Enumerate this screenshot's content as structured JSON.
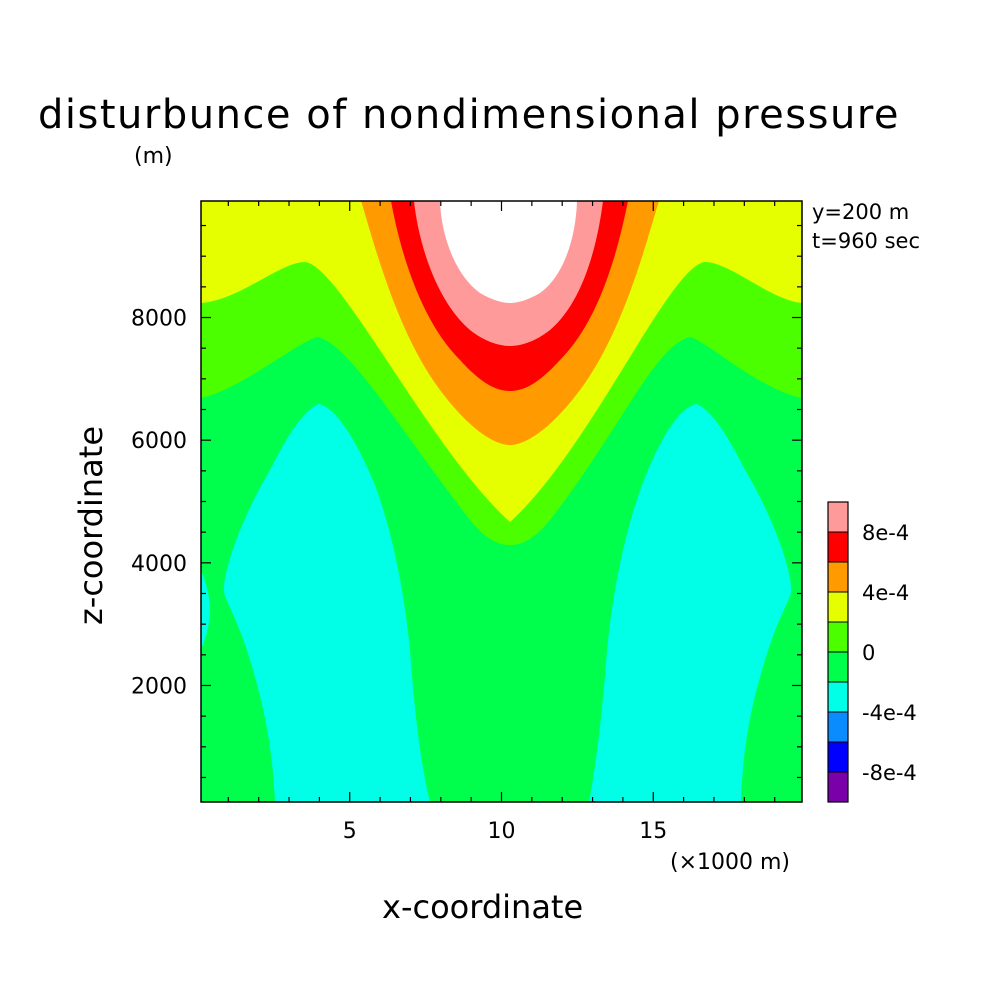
{
  "chart_data": {
    "type": "contour",
    "title": "disturbunce of nondimensional pressure",
    "ylabel_unit": "(m)",
    "xlabel": "x-coordinate",
    "ylabel": "z-coordinate",
    "x_multiplier_label": "(×1000 m)",
    "annotations": [
      "y=200 m",
      "t=960 sec"
    ],
    "xlim": [
      0.1,
      19.9
    ],
    "ylim": [
      100,
      9900
    ],
    "xticks": [
      5,
      10,
      15
    ],
    "xtick_labels": [
      "5",
      "10",
      "15"
    ],
    "yticks": [
      2000,
      4000,
      6000,
      8000
    ],
    "ytick_labels": [
      "2000",
      "4000",
      "6000",
      "8000"
    ],
    "levels_labels": [
      "8e-4",
      "4e-4",
      "0",
      "-4e-4",
      "-8e-4"
    ],
    "colorbar": [
      {
        "range": "> 1e-3",
        "color": "#ffffff"
      },
      {
        "range": "8e-4 – 1e-3",
        "color": "#ff9a9a"
      },
      {
        "range": "6e-4 – 8e-4",
        "color": "#ff0000"
      },
      {
        "range": "4e-4 – 6e-4",
        "color": "#ff9a00"
      },
      {
        "range": "2e-4 – 4e-4",
        "color": "#e6ff00"
      },
      {
        "range": "0 – 2e-4",
        "color": "#4cff00"
      },
      {
        "range": "-2e-4 – 0",
        "color": "#00ff4c"
      },
      {
        "range": "-4e-4 – -2e-4",
        "color": "#00ffe6"
      },
      {
        "range": "-6e-4 – -4e-4",
        "color": "#0a8cff"
      },
      {
        "range": "-8e-4 – -6e-4",
        "color": "#0000ff"
      },
      {
        "range": "< -8e-4",
        "color": "#7a00aa"
      }
    ]
  }
}
